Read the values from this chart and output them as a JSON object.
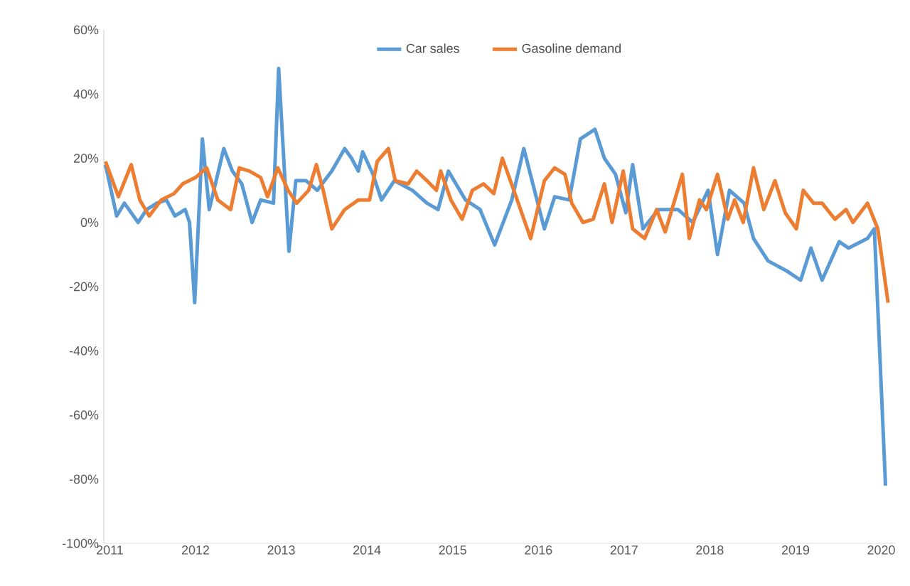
{
  "chart_data": {
    "type": "line",
    "xlim": [
      2010.93,
      2020.17
    ],
    "xticks": [
      2011,
      2012,
      2013,
      2014,
      2015,
      2016,
      2017,
      2018,
      2019,
      2020
    ],
    "ylim": [
      -100,
      60
    ],
    "yticks": [
      {
        "value": -100,
        "label": "-100%"
      },
      {
        "value": -80,
        "label": "-80%"
      },
      {
        "value": -60,
        "label": "-60%"
      },
      {
        "value": -40,
        "label": "-40%"
      },
      {
        "value": -20,
        "label": "-20%"
      },
      {
        "value": 0,
        "label": "0%"
      },
      {
        "value": 20,
        "label": "20%"
      },
      {
        "value": 40,
        "label": "40%"
      },
      {
        "value": 60,
        "label": "60%"
      }
    ],
    "legend": "top",
    "series": [
      {
        "name": "Car sales",
        "color": "#5b9bd5",
        "x": [
          2010.95,
          2011.08,
          2011.17,
          2011.33,
          2011.43,
          2011.55,
          2011.66,
          2011.76,
          2011.88,
          2011.93,
          2011.99,
          2012.08,
          2012.16,
          2012.33,
          2012.43,
          2012.54,
          2012.66,
          2012.76,
          2012.91,
          2012.97,
          2013.09,
          2013.17,
          2013.29,
          2013.42,
          2013.59,
          2013.74,
          2013.82,
          2013.9,
          2013.95,
          2014.07,
          2014.17,
          2014.32,
          2014.53,
          2014.7,
          2014.83,
          2014.95,
          2015.15,
          2015.32,
          2015.49,
          2015.69,
          2015.83,
          2016.07,
          2016.19,
          2016.36,
          2016.49,
          2016.66,
          2016.77,
          2016.9,
          2017.02,
          2017.1,
          2017.22,
          2017.4,
          2017.63,
          2017.8,
          2017.98,
          2018.09,
          2018.23,
          2018.4,
          2018.51,
          2018.68,
          2018.89,
          2019.06,
          2019.18,
          2019.31,
          2019.51,
          2019.62,
          2019.84,
          2019.92,
          2020.05
        ],
        "values": [
          18,
          2,
          6,
          0,
          4,
          6,
          7,
          2,
          4,
          0,
          -25,
          26,
          4,
          23,
          16,
          12,
          0,
          7,
          6,
          48,
          -9,
          13,
          13,
          10,
          16,
          23,
          20,
          16,
          22,
          15,
          7,
          13,
          10,
          6,
          4,
          16,
          7,
          4,
          -7,
          7,
          23,
          -2,
          8,
          7,
          26,
          29,
          20,
          15,
          3,
          18,
          -2,
          4,
          4,
          0,
          10,
          -10,
          10,
          6,
          -5,
          -12,
          -15,
          -18,
          -8,
          -18,
          -6,
          -8,
          -5,
          -2,
          -82
        ]
      },
      {
        "name": "Gasoline demand",
        "color": "#ed7d31",
        "x": [
          2010.95,
          2011.1,
          2011.25,
          2011.35,
          2011.46,
          2011.6,
          2011.75,
          2011.85,
          2012.0,
          2012.13,
          2012.26,
          2012.41,
          2012.51,
          2012.63,
          2012.76,
          2012.84,
          2012.96,
          2013.08,
          2013.18,
          2013.32,
          2013.41,
          2013.49,
          2013.59,
          2013.74,
          2013.9,
          2014.03,
          2014.12,
          2014.25,
          2014.33,
          2014.48,
          2014.58,
          2014.7,
          2014.81,
          2014.86,
          2014.98,
          2015.11,
          2015.23,
          2015.36,
          2015.48,
          2015.58,
          2015.74,
          2015.91,
          2016.07,
          2016.19,
          2016.31,
          2016.39,
          2016.52,
          2016.64,
          2016.77,
          2016.86,
          2016.99,
          2017.1,
          2017.24,
          2017.38,
          2017.48,
          2017.68,
          2017.76,
          2017.88,
          2017.96,
          2018.09,
          2018.21,
          2018.29,
          2018.39,
          2018.51,
          2018.63,
          2018.76,
          2018.88,
          2019.01,
          2019.09,
          2019.21,
          2019.31,
          2019.46,
          2019.59,
          2019.67,
          2019.84,
          2019.96,
          2020.08
        ],
        "values": [
          19,
          8,
          18,
          7,
          2,
          7,
          9,
          12,
          14,
          17,
          7,
          4,
          17,
          16,
          14,
          8,
          17,
          10,
          6,
          10,
          18,
          10,
          -2,
          4,
          7,
          7,
          19,
          23,
          13,
          12,
          16,
          13,
          10,
          16,
          7,
          1,
          10,
          12,
          9,
          20,
          8,
          -5,
          13,
          17,
          15,
          6,
          0,
          1,
          12,
          0,
          16,
          -2,
          -5,
          4,
          -3,
          15,
          -5,
          7,
          4,
          15,
          1,
          7,
          0,
          17,
          4,
          13,
          3,
          -2,
          10,
          6,
          6,
          1,
          4,
          0,
          6,
          -2,
          -25
        ]
      }
    ]
  }
}
